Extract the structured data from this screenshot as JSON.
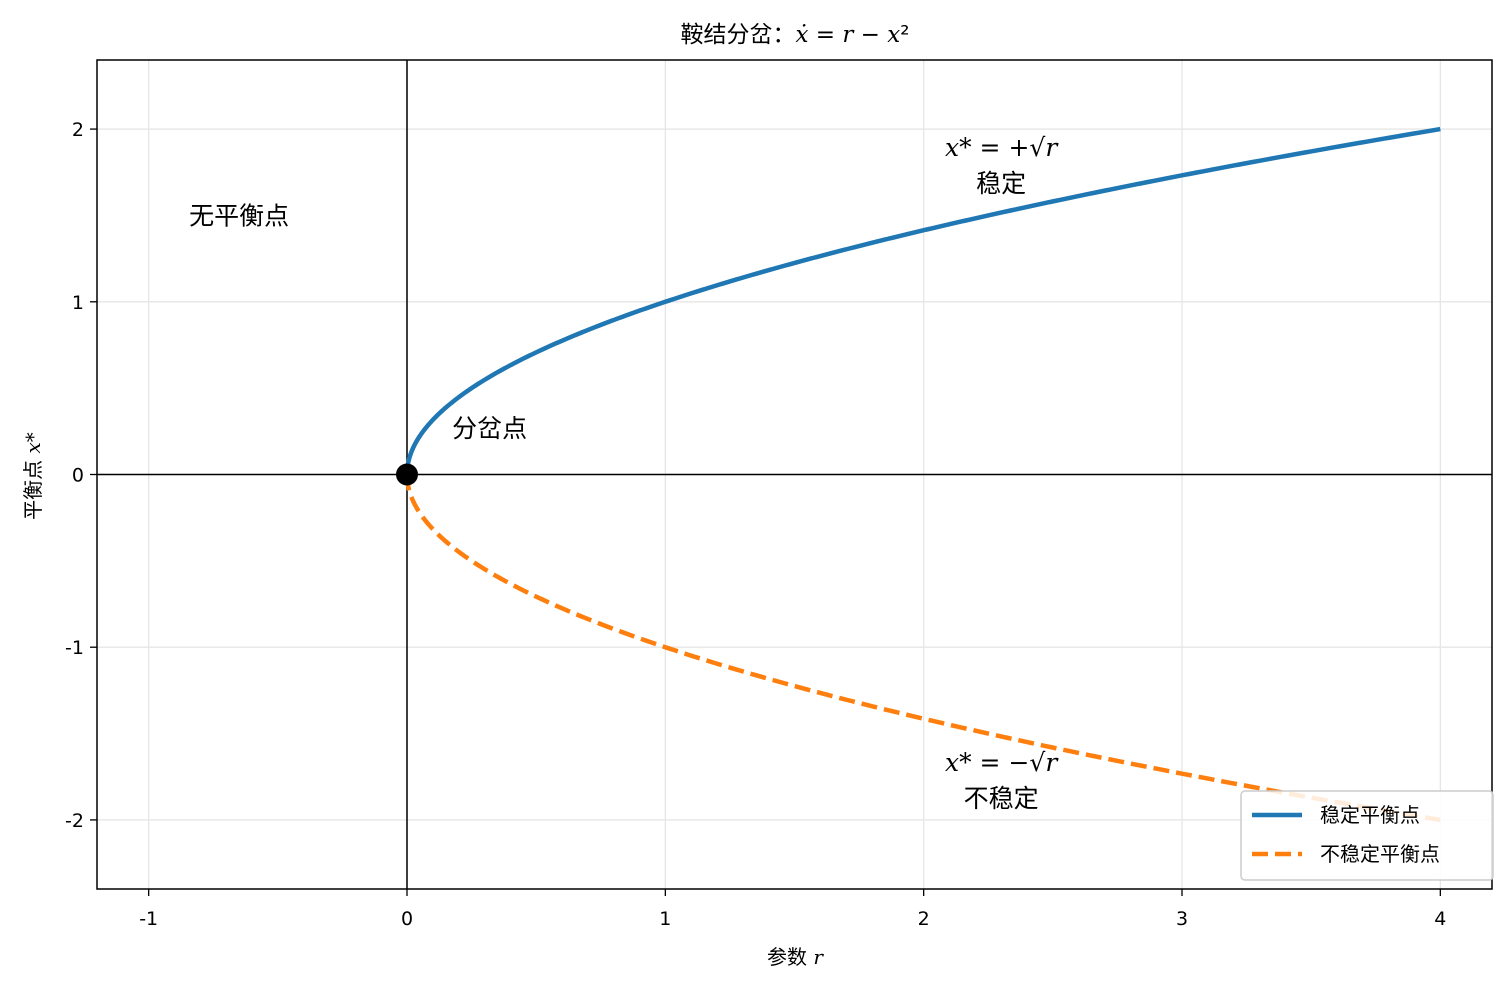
{
  "chart_data": {
    "type": "line",
    "title": "鞍结分岔：ẋ = r − x²",
    "xlabel": "参数 r",
    "ylabel": "平衡点 x*",
    "xlim": [
      -1.2,
      4.2
    ],
    "ylim": [
      -2.4,
      2.4
    ],
    "xticks": [
      -1,
      0,
      1,
      2,
      3,
      4
    ],
    "yticks": [
      -2,
      -1,
      0,
      1,
      2
    ],
    "xtick_labels": [
      "-1",
      "0",
      "1",
      "2",
      "3",
      "4"
    ],
    "ytick_labels": [
      "-2",
      "-1",
      "0",
      "1",
      "2"
    ],
    "grid": true,
    "legend_position": "lower-right",
    "series": [
      {
        "name": "稳定平衡点",
        "function": "+sqrt(r)",
        "r_range": [
          0,
          4
        ],
        "style": "solid",
        "color": "#1f77b4"
      },
      {
        "name": "不稳定平衡点",
        "function": "-sqrt(r)",
        "r_range": [
          0,
          4
        ],
        "style": "dashed",
        "color": "#ff7f0e"
      }
    ],
    "points": [
      {
        "x": 0,
        "y": 0,
        "color": "#000000"
      }
    ],
    "annotations": [
      {
        "text": "无平衡点",
        "x": -0.65,
        "y": 1.5
      },
      {
        "text": "分岔点",
        "x": 0.32,
        "y": 0.27
      },
      {
        "line1": "x* = +√r",
        "line2": "稳定",
        "x": 2.3,
        "y": 1.78
      },
      {
        "line1": "x* = −√r",
        "line2": "不稳定",
        "x": 2.3,
        "y": -1.78
      }
    ]
  }
}
